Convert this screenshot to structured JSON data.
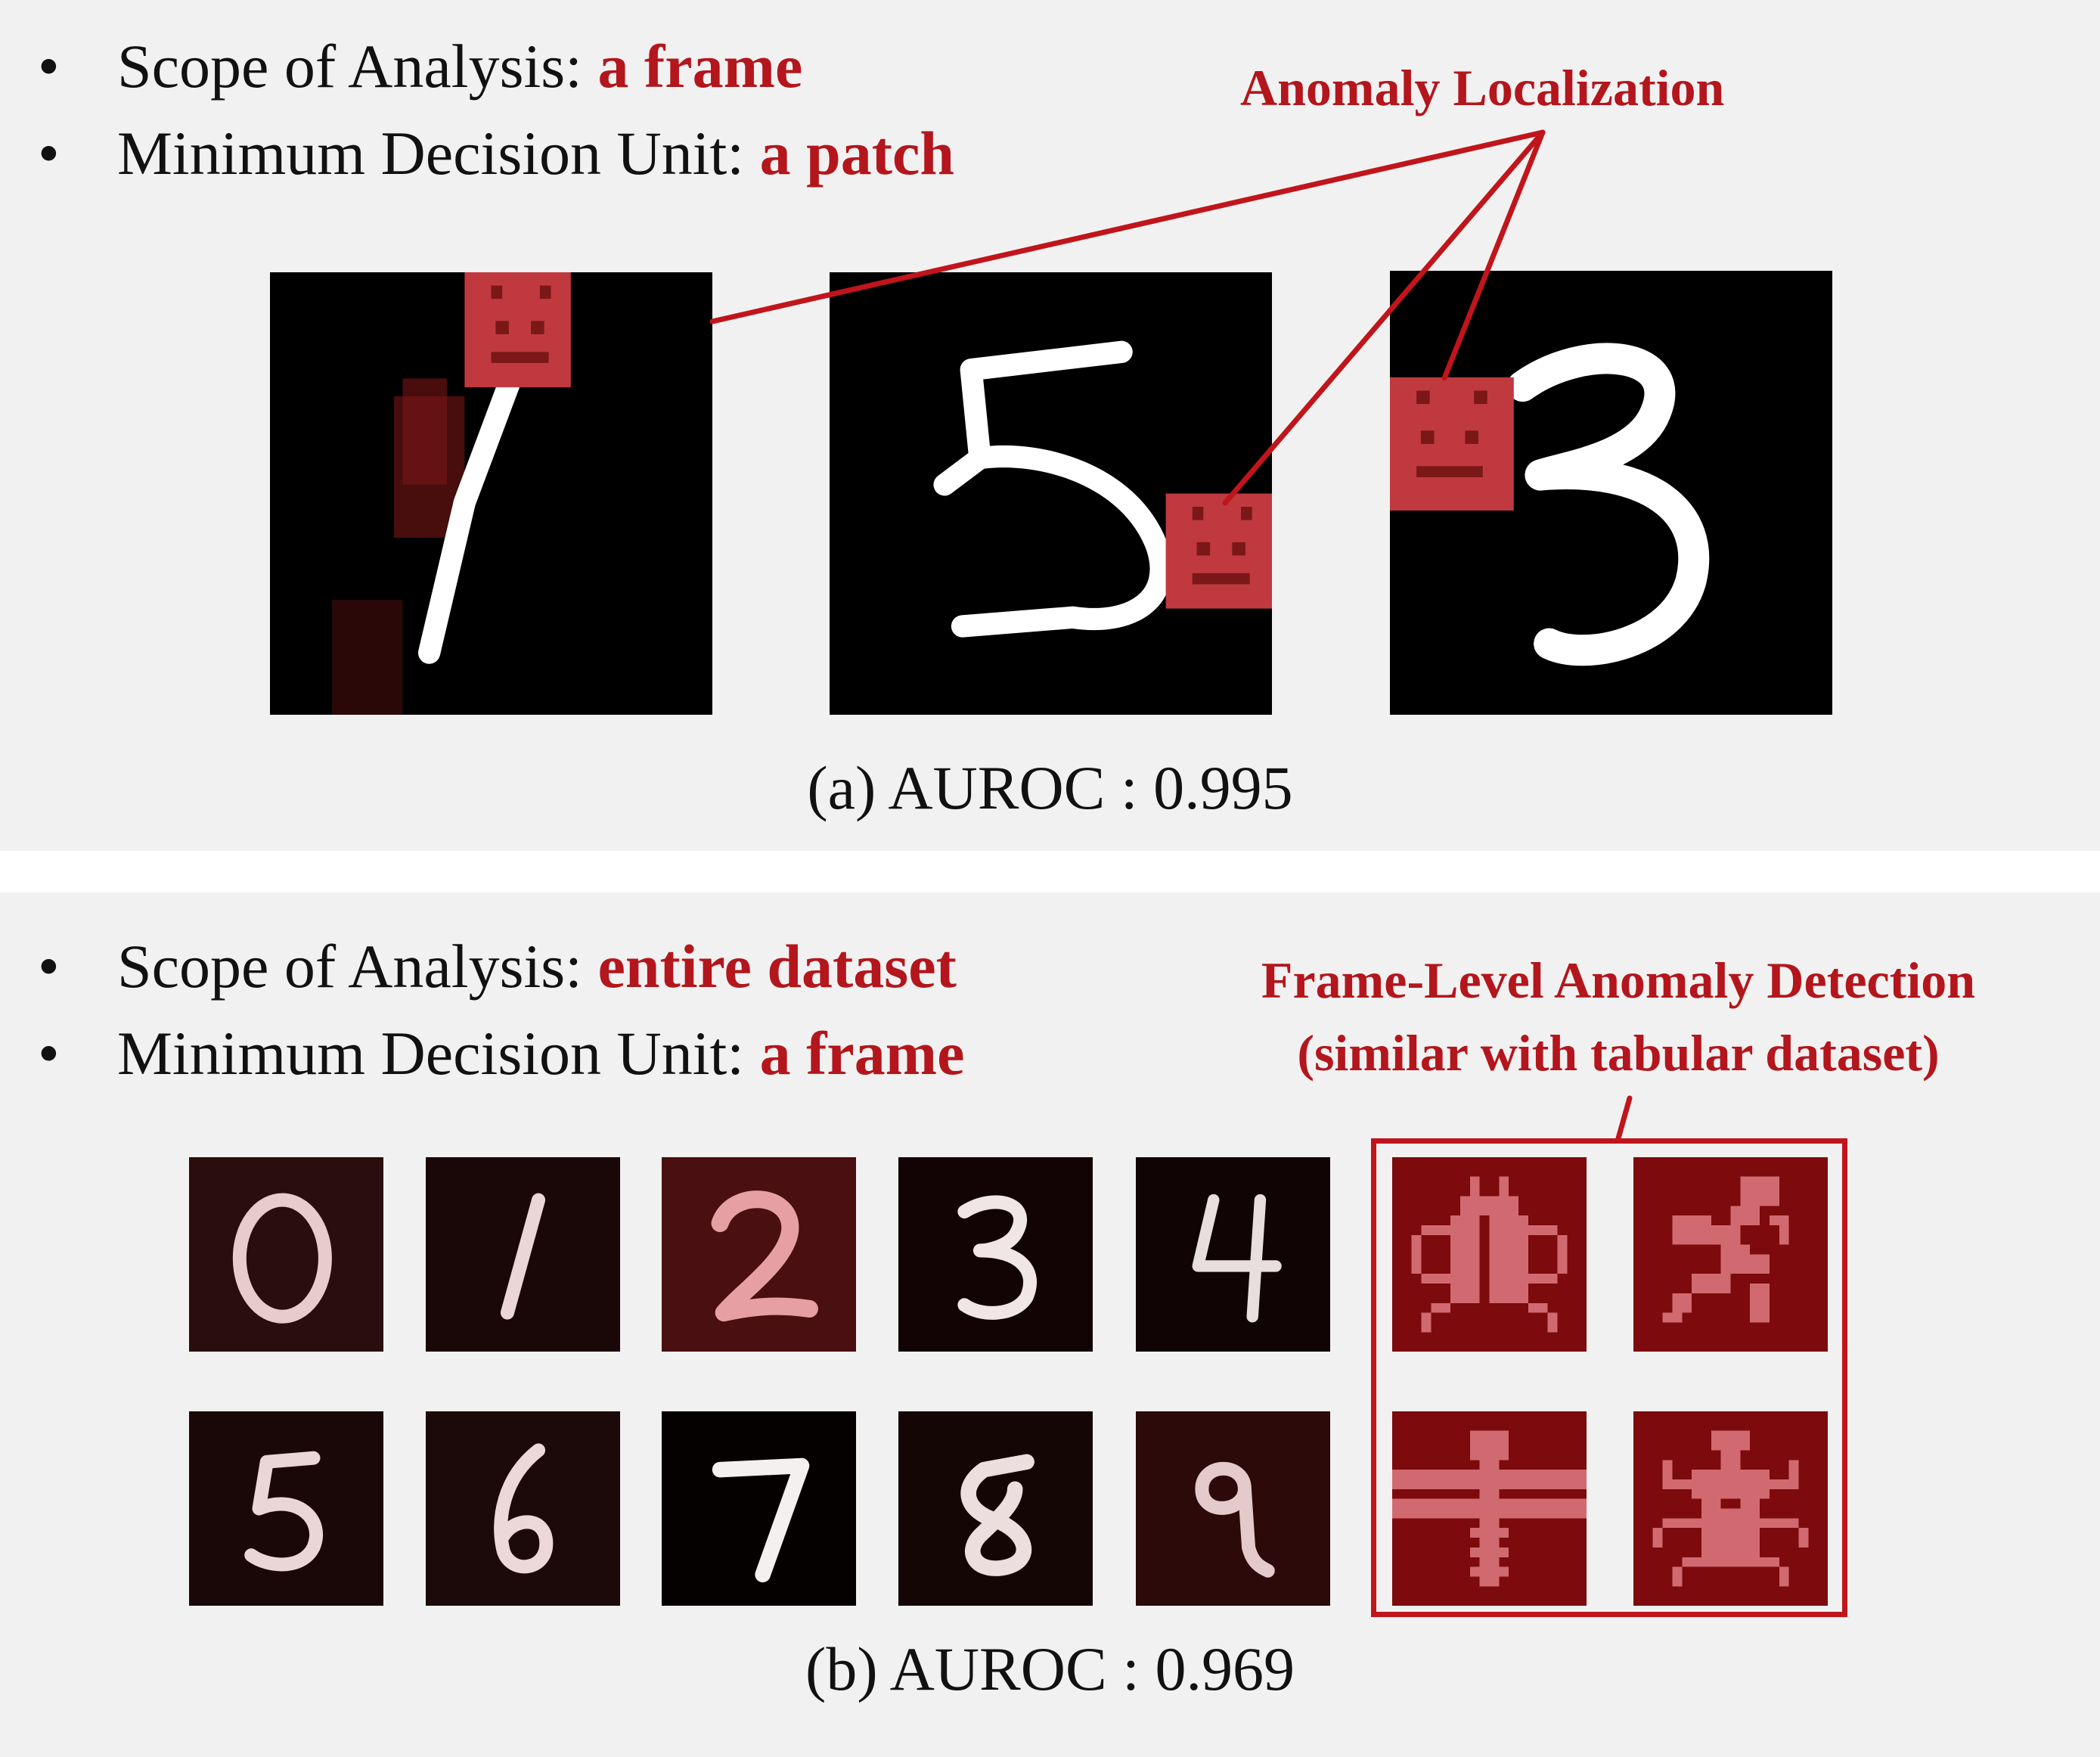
{
  "panel_a": {
    "bullets": [
      {
        "label": "Scope of Analysis:",
        "value": "a frame"
      },
      {
        "label": "Minimum Decision Unit:",
        "value": "a patch"
      }
    ],
    "callout": "Anomaly Localization",
    "digits": [
      "1",
      "5",
      "3"
    ],
    "caption": "(a) AUROC : 0.995"
  },
  "panel_b": {
    "bullets": [
      {
        "label": "Scope of Analysis:",
        "value": "entire dataset"
      },
      {
        "label": "Minimum Decision Unit:",
        "value": "a frame"
      }
    ],
    "callout_line1": "Frame-Level Anomaly Detection",
    "callout_line2": "(similar with tabular dataset)",
    "digits_row1": [
      "0",
      "1",
      "2",
      "3",
      "4"
    ],
    "digits_row2": [
      "5",
      "6",
      "7",
      "8",
      "9"
    ],
    "caption": "(b) AUROC : 0.969"
  },
  "colors": {
    "accent": "#b3161c",
    "panel_bg": "#f1f1f1"
  }
}
